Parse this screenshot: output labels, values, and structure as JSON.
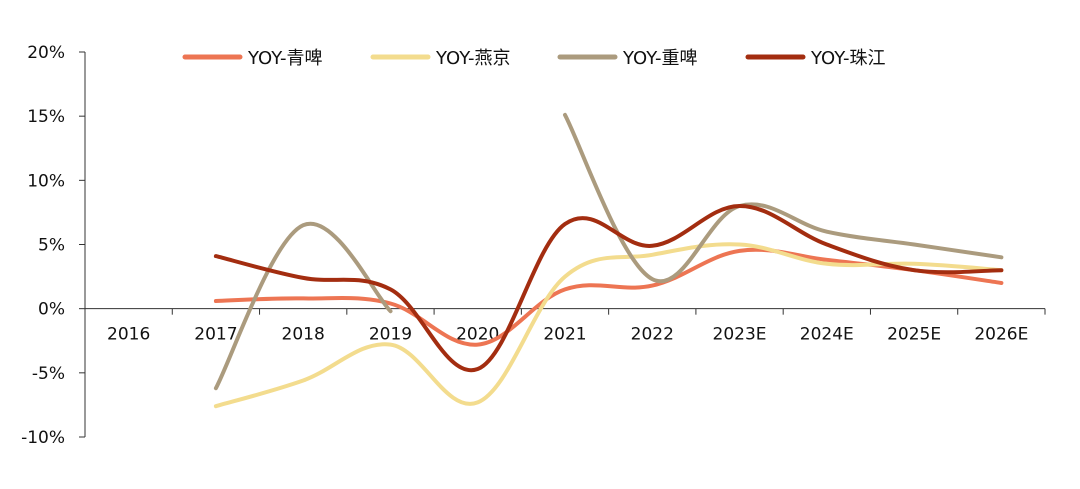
{
  "chart_data": {
    "type": "line",
    "title": "",
    "xlabel": "",
    "ylabel": "",
    "categories": [
      "2016",
      "2017",
      "2018",
      "2019",
      "2020",
      "2021",
      "2022",
      "2023E",
      "2024E",
      "2025E",
      "2026E"
    ],
    "ylim": [
      -10,
      20
    ],
    "y_ticks": [
      "-10%",
      "-5%",
      "0%",
      "5%",
      "10%",
      "15%",
      "20%"
    ],
    "y_tick_values": [
      -10,
      -5,
      0,
      5,
      10,
      15,
      20
    ],
    "legend_position": "top",
    "series": [
      {
        "name": "YOY-青啤",
        "color": "#ED7553",
        "values": [
          null,
          0.6,
          0.8,
          0.4,
          -2.8,
          1.5,
          1.8,
          4.5,
          3.8,
          3.0,
          2.0
        ]
      },
      {
        "name": "YOY-燕京",
        "color": "#F3DC8E",
        "values": [
          null,
          -7.6,
          -5.6,
          -2.8,
          -7.3,
          2.5,
          4.2,
          5.0,
          3.5,
          3.5,
          3.0
        ]
      },
      {
        "name": "YOY-重啤",
        "color": "#AB9B7E",
        "values": [
          null,
          -6.2,
          6.5,
          -0.2,
          null,
          15.1,
          2.3,
          8.0,
          6.0,
          5.0,
          4.0
        ]
      },
      {
        "name": "YOY-珠江",
        "color": "#A32D10",
        "values": [
          null,
          4.1,
          2.4,
          1.5,
          -4.7,
          6.6,
          4.9,
          8.0,
          5.0,
          3.0,
          3.0
        ]
      }
    ]
  }
}
